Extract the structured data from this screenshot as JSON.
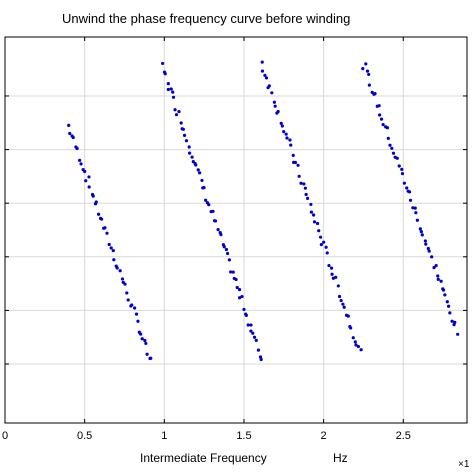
{
  "chart_data": {
    "type": "scatter",
    "title": "Unwind the phase frequency curve before winding",
    "xlabel": "Intermediate Frequency",
    "xlabel_unit": "Hz",
    "x_exponent_mark": "×1",
    "ylabel": "",
    "xlim": [
      0,
      2.9
    ],
    "ylim": [
      -3.6,
      3.6
    ],
    "x_ticks": [
      0,
      0.5,
      1,
      1.5,
      2,
      2.5
    ],
    "x_tick_labels": [
      "0",
      "0.5",
      "1",
      "1.5",
      "2",
      "2.5"
    ],
    "y_ticks": [
      -2.5,
      -1.5,
      -0.5,
      0.5,
      1.5,
      2.5
    ],
    "grid": true,
    "legend": "none",
    "marker_color": "#0000cc",
    "series": [
      {
        "segments": [
          {
            "x_start": 0.4,
            "x_end": 0.92,
            "y_start": 1.94,
            "y_end": -2.48,
            "points": 48
          },
          {
            "x_start": 0.99,
            "x_end": 1.61,
            "y_start": 3.04,
            "y_end": -2.4,
            "points": 62
          },
          {
            "x_start": 1.61,
            "x_end": 2.23,
            "y_start": 3.12,
            "y_end": -2.3,
            "points": 58
          },
          {
            "x_start": 2.25,
            "x_end": 2.84,
            "y_start": 3.1,
            "y_end": -1.9,
            "points": 56
          }
        ]
      }
    ]
  }
}
